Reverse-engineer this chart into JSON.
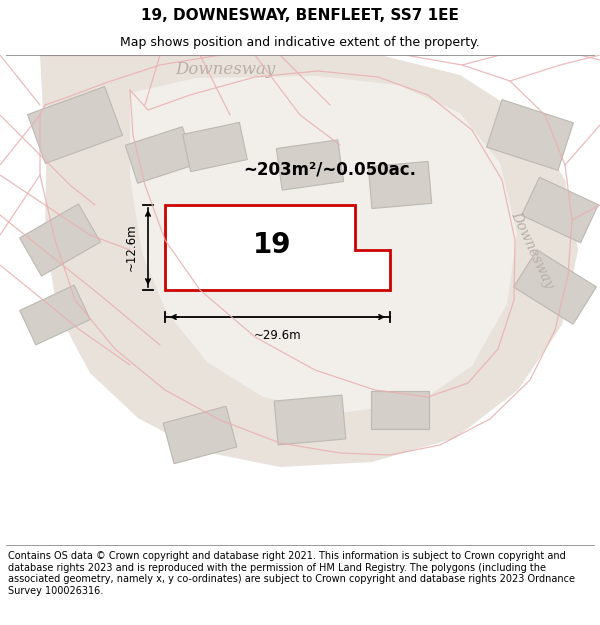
{
  "title": "19, DOWNESWAY, BENFLEET, SS7 1EE",
  "subtitle": "Map shows position and indicative extent of the property.",
  "footer": "Contains OS data © Crown copyright and database right 2021. This information is subject to Crown copyright and database rights 2023 and is reproduced with the permission of HM Land Registry. The polygons (including the associated geometry, namely x, y co-ordinates) are subject to Crown copyright and database rights 2023 Ordnance Survey 100026316.",
  "bg_color": "#f7f5f2",
  "map_bg": "#f2efea",
  "road_fill": "#e8e2db",
  "building_fill": "#d4cfc8",
  "building_edge": "#bcb8b2",
  "road_line_color": "#e8b0b0",
  "highlight_color": "#cc0000",
  "highlight_fill": "#ffffff",
  "area_text": "~203m²/~0.050ac.",
  "number_text": "19",
  "width_text": "~29.6m",
  "height_text": "~12.6m",
  "street_label_top": "Downesway",
  "street_label_right": "Downesway",
  "title_fontsize": 11,
  "subtitle_fontsize": 9,
  "footer_fontsize": 7
}
